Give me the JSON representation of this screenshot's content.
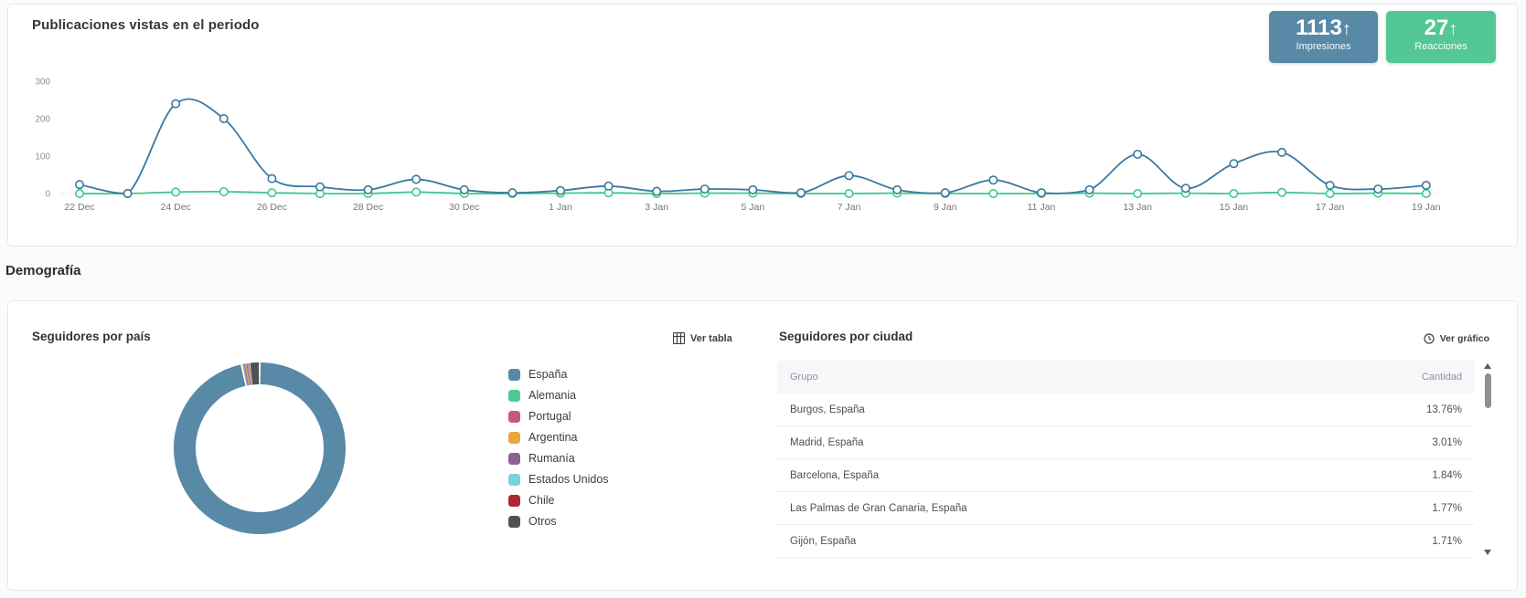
{
  "posts_panel": {
    "title": "Publicaciones vistas en el periodo",
    "stats": [
      {
        "value": "1113",
        "arrow": "↑",
        "label": "Impresiones",
        "color": "#5889a7"
      },
      {
        "value": "27",
        "arrow": "↑",
        "label": "Reacciones",
        "color": "#53c795"
      }
    ]
  },
  "demography": {
    "heading": "Demografía",
    "country_panel": {
      "title": "Seguidores por país",
      "view_table_label": "Ver tabla",
      "legend": [
        {
          "label": "España",
          "color": "#5889a7"
        },
        {
          "label": "Alemania",
          "color": "#4dc993"
        },
        {
          "label": "Portugal",
          "color": "#c75886"
        },
        {
          "label": "Argentina",
          "color": "#e8a83e"
        },
        {
          "label": "Rumanía",
          "color": "#8d5f95"
        },
        {
          "label": "Estados Unidos",
          "color": "#79d2dc"
        },
        {
          "label": "Chile",
          "color": "#ae2631"
        },
        {
          "label": "Otros",
          "color": "#515151"
        }
      ]
    },
    "city_panel": {
      "title": "Seguidores por ciudad",
      "view_chart_label": "Ver gráfico",
      "table": {
        "columns": [
          "Grupo",
          "Cantidad"
        ],
        "rows": [
          {
            "group": "Burgos, España",
            "amount": "13.76%"
          },
          {
            "group": "Madrid, España",
            "amount": "3.01%"
          },
          {
            "group": "Barcelona, España",
            "amount": "1.84%"
          },
          {
            "group": "Las Palmas de Gran Canaria, España",
            "amount": "1.77%"
          },
          {
            "group": "Gijón, España",
            "amount": "1.71%"
          }
        ]
      }
    }
  },
  "chart_data": [
    {
      "type": "line",
      "title": "Publicaciones vistas en el periodo",
      "x": [
        "22 Dec",
        "23 Dec",
        "24 Dec",
        "25 Dec",
        "26 Dec",
        "27 Dec",
        "28 Dec",
        "29 Dec",
        "30 Dec",
        "31 Dec",
        "1 Jan",
        "2 Jan",
        "3 Jan",
        "4 Jan",
        "5 Jan",
        "6 Jan",
        "7 Jan",
        "8 Jan",
        "9 Jan",
        "10 Jan",
        "11 Jan",
        "12 Jan",
        "13 Jan",
        "14 Jan",
        "15 Jan",
        "16 Jan",
        "17 Jan",
        "18 Jan",
        "19 Jan"
      ],
      "xtick_labels": [
        "22 Dec",
        "24 Dec",
        "26 Dec",
        "28 Dec",
        "30 Dec",
        "1 Jan",
        "3 Jan",
        "5 Jan",
        "7 Jan",
        "9 Jan",
        "11 Jan",
        "13 Jan",
        "15 Jan",
        "17 Jan",
        "19 Jan"
      ],
      "ylim": [
        0,
        300
      ],
      "yticks": [
        0,
        100,
        200,
        300
      ],
      "grid": false,
      "legend_position": "none",
      "series": [
        {
          "name": "Impresiones",
          "color": "#39799f",
          "values": [
            24,
            0,
            240,
            200,
            40,
            18,
            10,
            38,
            10,
            2,
            8,
            20,
            6,
            12,
            10,
            2,
            48,
            10,
            2,
            36,
            2,
            10,
            105,
            14,
            80,
            110,
            22,
            12,
            22
          ]
        },
        {
          "name": "Reacciones",
          "color": "#3fc98c",
          "values": [
            0,
            0,
            4,
            5,
            2,
            0,
            0,
            4,
            0,
            0,
            1,
            2,
            0,
            1,
            1,
            0,
            0,
            1,
            0,
            0,
            0,
            1,
            0,
            1,
            0,
            3,
            0,
            1,
            0
          ]
        }
      ]
    },
    {
      "type": "pie",
      "title": "Seguidores por país",
      "labels": [
        "España",
        "Alemania",
        "Portugal",
        "Argentina",
        "Rumanía",
        "Estados Unidos",
        "Chile",
        "Otros"
      ],
      "values": [
        96.6,
        0.35,
        0.3,
        0.25,
        0.2,
        0.2,
        0.15,
        1.95
      ],
      "colors": [
        "#5889a7",
        "#4dc993",
        "#c75886",
        "#e8a83e",
        "#8d5f95",
        "#79d2dc",
        "#ae2631",
        "#515151"
      ],
      "donut": true
    }
  ]
}
